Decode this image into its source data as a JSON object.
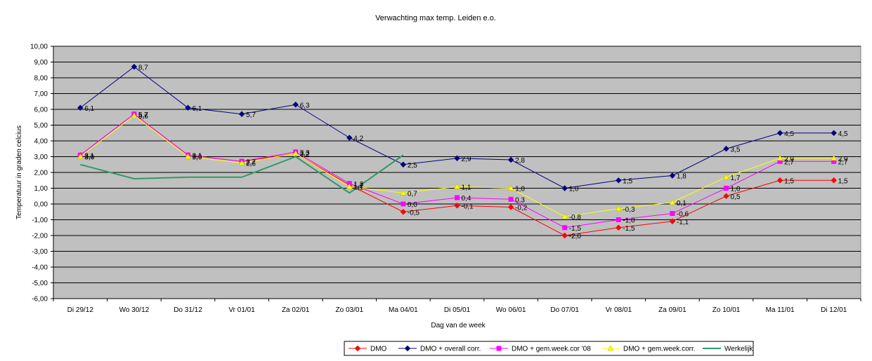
{
  "chart_data": {
    "type": "line",
    "title": "Verwachting max temp. Leiden e.o.",
    "xlabel": "Dag van de week",
    "ylabel": "Temperatuur in graden celcius",
    "ylim": [
      -6,
      10
    ],
    "ytick_step": 1,
    "ytick_labels": [
      "10,00",
      "9,00",
      "8,00",
      "7,00",
      "6,00",
      "5,00",
      "4,00",
      "3,00",
      "2,00",
      "1,00",
      "0,00",
      "-1,00",
      "-2,00",
      "-3,00",
      "-4,00",
      "-5,00",
      "-6,00"
    ],
    "grid": true,
    "plot_background": "#c0c0c0",
    "legend_position": "bottom",
    "categories": [
      "Di 29/12",
      "Wo 30/12",
      "Do 31/12",
      "Vr 01/01",
      "Za 02/01",
      "Zo 03/01",
      "Ma 04/01",
      "Di 05/01",
      "Wo 06/01",
      "Do 07/01",
      "Vr 08/01",
      "Za 09/01",
      "Zo 10/01",
      "Ma 11/01",
      "Di 12/01"
    ],
    "series": [
      {
        "name": "DMO",
        "color": "#ff0000",
        "marker": "diamond",
        "values": [
          3.1,
          5.7,
          3.1,
          2.7,
          3.2,
          1.2,
          -0.5,
          -0.1,
          -0.2,
          -2.0,
          -1.5,
          -1.1,
          0.5,
          1.5,
          1.5
        ],
        "labels": [
          "3,1",
          "5,7",
          "3,1",
          "2,7",
          "3,2",
          "1,2",
          "-0,5",
          "-0,1",
          "-0,2",
          "-2,0",
          "-1,5",
          "-1,1",
          "0,5",
          "1,5",
          "1,5"
        ]
      },
      {
        "name": "DMO + overall corr.",
        "color": "#000080",
        "marker": "diamond",
        "values": [
          6.1,
          8.7,
          6.1,
          5.7,
          6.3,
          4.2,
          2.5,
          2.9,
          2.8,
          1.0,
          1.5,
          1.8,
          3.5,
          4.5,
          4.5
        ],
        "labels": [
          "6,1",
          "8,7",
          "6,1",
          "5,7",
          "6,3",
          "4,2",
          "2,5",
          "2,9",
          "2,8",
          "1,0",
          "1,5",
          "1,8",
          "3,5",
          "4,5",
          "4,5"
        ]
      },
      {
        "name": "DMO + gem.week.cor '08",
        "color": "#ff00ff",
        "marker": "square",
        "values": [
          3.1,
          5.7,
          3.1,
          2.7,
          3.3,
          1.3,
          0.0,
          0.4,
          0.3,
          -1.5,
          -1.0,
          -0.6,
          1.0,
          2.7,
          2.7
        ],
        "labels": [
          "3,1",
          "5,7",
          "3,1",
          "2,7",
          "3,3",
          "1,3",
          "0,0",
          "0,4",
          "0,3",
          "-1,5",
          "-1,0",
          "-0,6",
          "1,0",
          "2,7",
          "2,7"
        ]
      },
      {
        "name": "DMO + gem.week.corr.",
        "color": "#ffff00",
        "marker": "triangle",
        "values": [
          3.0,
          5.6,
          3.0,
          2.6,
          3.2,
          1.1,
          0.7,
          1.1,
          1.0,
          -0.8,
          -0.3,
          0.1,
          1.7,
          2.9,
          2.9
        ],
        "labels": [
          "3,0",
          "5,6",
          "3,0",
          "2,6",
          "3,2",
          "1,1",
          "0,7",
          "1,1",
          "1,0",
          "-0,8",
          "-0,3",
          "0,1",
          "1,7",
          "2,9",
          "2,9"
        ]
      },
      {
        "name": "Werkelijk",
        "color": "#339966",
        "marker": "none",
        "values": [
          2.5,
          1.6,
          1.7,
          1.7,
          3.0,
          0.7,
          3.1,
          null,
          null,
          null,
          null,
          null,
          null,
          null,
          null
        ],
        "labels": []
      }
    ]
  }
}
